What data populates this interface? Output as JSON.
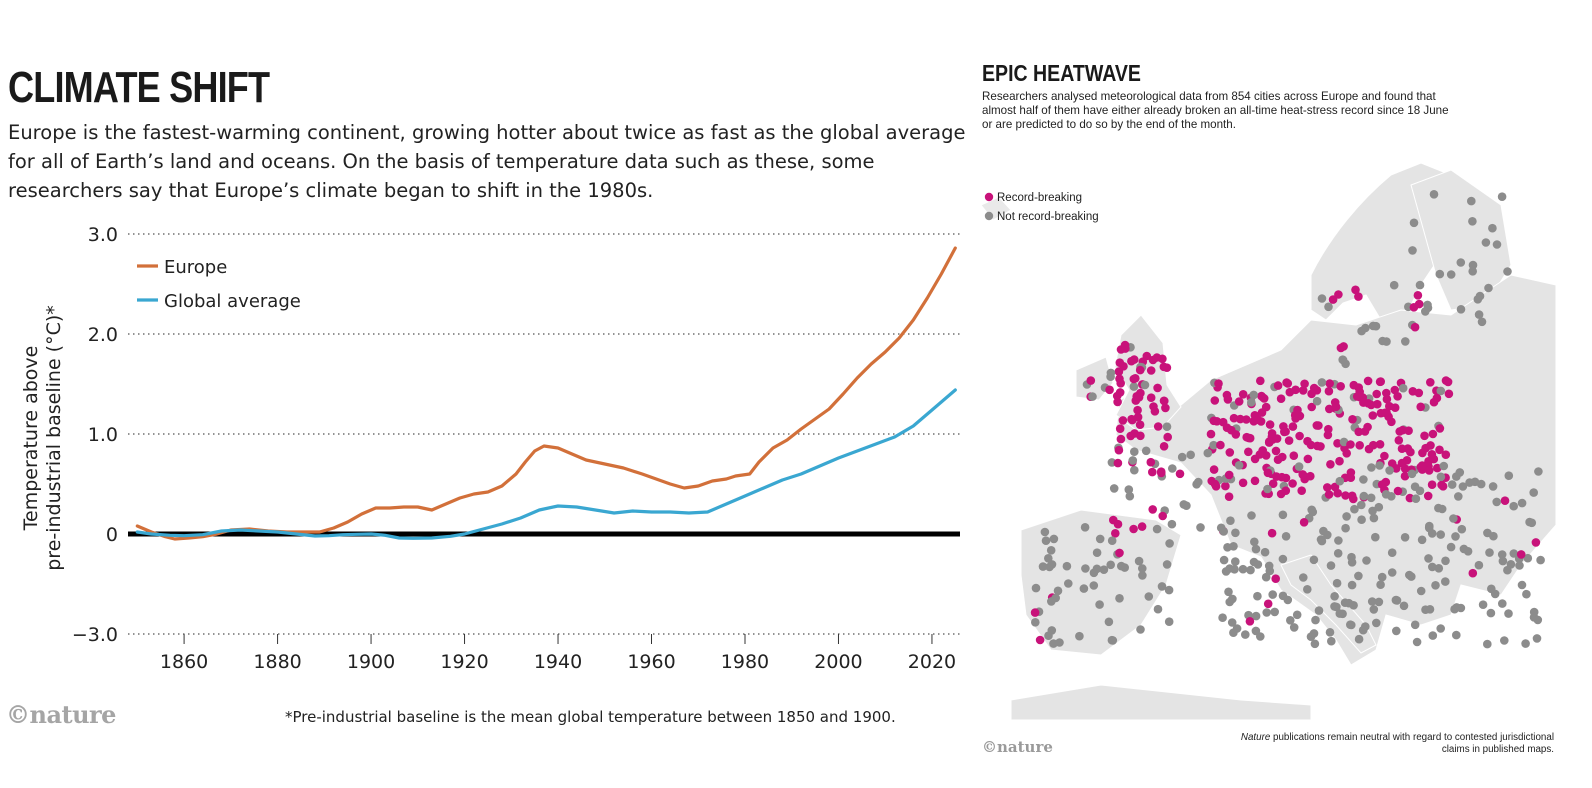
{
  "left": {
    "title": "CLIMATE SHIFT",
    "subtitle": "Europe is the fastest-warming continent, growing hotter about twice as fast as the global average for all of Earth’s land and oceans. On the basis of temperature data such as these, some researchers say that Europe’s climate began to shift in the 1980s.",
    "logo": "©nature",
    "footnote": "*Pre-industrial baseline is the mean global temperature between 1850 and 1900."
  },
  "right": {
    "title": "EPIC HEATWAVE",
    "subtitle": "Researchers analysed meteorological data from 854 cities across Europe and found that almost half of them have either already broken an all-time heat-stress record since 18 June or are predicted to do so by the end of the month.",
    "legend": [
      {
        "label": "Record-breaking",
        "color": "#c8127a"
      },
      {
        "label": "Not record-breaking",
        "color": "#8c8c8c"
      }
    ],
    "logo": "©nature",
    "disclaimer_italic": "Nature",
    "disclaimer_rest": " publications remain neutral with regard to contested jurisdictional claims in published maps."
  },
  "chart_data": {
    "type": "line",
    "ylabel_line1": "Temperature above",
    "ylabel_line2": "pre-industrial baseline (°C)*",
    "xlim": [
      1848,
      2026
    ],
    "ylim": [
      -3.0,
      3.0
    ],
    "y_axis_break": "the segment between −3.0 and 0 is compressed",
    "yticks": [
      {
        "value": 3.0,
        "label": "3.0"
      },
      {
        "value": 2.0,
        "label": "2.0"
      },
      {
        "value": 1.0,
        "label": "1.0"
      },
      {
        "value": 0,
        "label": "0"
      },
      {
        "value": -3.0,
        "label": "−3.0"
      }
    ],
    "xticks": [
      1860,
      1880,
      1900,
      1920,
      1940,
      1960,
      1980,
      2000,
      2020
    ],
    "grid": "dotted horizontal at labelled y ticks",
    "zero_line": true,
    "legend_position": "top-left",
    "series": [
      {
        "name": "Europe",
        "color": "#d2703a",
        "points": [
          [
            1850,
            0.08
          ],
          [
            1853,
            0.02
          ],
          [
            1856,
            -0.08
          ],
          [
            1858,
            -0.15
          ],
          [
            1861,
            -0.12
          ],
          [
            1864,
            -0.08
          ],
          [
            1867,
            0.0
          ],
          [
            1870,
            0.04
          ],
          [
            1874,
            0.05
          ],
          [
            1878,
            0.03
          ],
          [
            1882,
            0.02
          ],
          [
            1886,
            0.02
          ],
          [
            1889,
            0.02
          ],
          [
            1892,
            0.06
          ],
          [
            1895,
            0.12
          ],
          [
            1898,
            0.2
          ],
          [
            1901,
            0.26
          ],
          [
            1904,
            0.26
          ],
          [
            1907,
            0.27
          ],
          [
            1910,
            0.27
          ],
          [
            1913,
            0.24
          ],
          [
            1916,
            0.3
          ],
          [
            1919,
            0.36
          ],
          [
            1922,
            0.4
          ],
          [
            1925,
            0.42
          ],
          [
            1928,
            0.48
          ],
          [
            1931,
            0.6
          ],
          [
            1933,
            0.72
          ],
          [
            1935,
            0.83
          ],
          [
            1937,
            0.88
          ],
          [
            1940,
            0.86
          ],
          [
            1943,
            0.8
          ],
          [
            1946,
            0.74
          ],
          [
            1950,
            0.7
          ],
          [
            1954,
            0.66
          ],
          [
            1958,
            0.6
          ],
          [
            1961,
            0.55
          ],
          [
            1964,
            0.5
          ],
          [
            1967,
            0.46
          ],
          [
            1970,
            0.48
          ],
          [
            1973,
            0.53
          ],
          [
            1976,
            0.55
          ],
          [
            1978,
            0.58
          ],
          [
            1981,
            0.6
          ],
          [
            1983,
            0.72
          ],
          [
            1986,
            0.86
          ],
          [
            1989,
            0.94
          ],
          [
            1992,
            1.05
          ],
          [
            1995,
            1.15
          ],
          [
            1998,
            1.25
          ],
          [
            2001,
            1.4
          ],
          [
            2004,
            1.56
          ],
          [
            2007,
            1.7
          ],
          [
            2010,
            1.82
          ],
          [
            2013,
            1.96
          ],
          [
            2016,
            2.14
          ],
          [
            2019,
            2.36
          ],
          [
            2022,
            2.6
          ],
          [
            2025,
            2.86
          ]
        ]
      },
      {
        "name": "Global average",
        "color": "#3aa7d1",
        "points": [
          [
            1850,
            0.02
          ],
          [
            1853,
            0.0
          ],
          [
            1857,
            -0.04
          ],
          [
            1860,
            -0.05
          ],
          [
            1864,
            -0.02
          ],
          [
            1868,
            0.03
          ],
          [
            1872,
            0.04
          ],
          [
            1876,
            0.03
          ],
          [
            1880,
            0.02
          ],
          [
            1884,
            0.0
          ],
          [
            1888,
            -0.06
          ],
          [
            1891,
            -0.05
          ],
          [
            1894,
            -0.02
          ],
          [
            1897,
            -0.01
          ],
          [
            1900,
            0.0
          ],
          [
            1903,
            -0.04
          ],
          [
            1906,
            -0.12
          ],
          [
            1909,
            -0.13
          ],
          [
            1913,
            -0.12
          ],
          [
            1917,
            -0.07
          ],
          [
            1920,
            0.0
          ],
          [
            1924,
            0.05
          ],
          [
            1928,
            0.1
          ],
          [
            1932,
            0.16
          ],
          [
            1936,
            0.24
          ],
          [
            1940,
            0.28
          ],
          [
            1944,
            0.27
          ],
          [
            1948,
            0.24
          ],
          [
            1952,
            0.21
          ],
          [
            1956,
            0.23
          ],
          [
            1960,
            0.22
          ],
          [
            1964,
            0.22
          ],
          [
            1968,
            0.21
          ],
          [
            1972,
            0.22
          ],
          [
            1976,
            0.3
          ],
          [
            1980,
            0.38
          ],
          [
            1984,
            0.46
          ],
          [
            1988,
            0.54
          ],
          [
            1992,
            0.6
          ],
          [
            1996,
            0.68
          ],
          [
            2000,
            0.76
          ],
          [
            2004,
            0.83
          ],
          [
            2008,
            0.9
          ],
          [
            2012,
            0.97
          ],
          [
            2016,
            1.08
          ],
          [
            2020,
            1.24
          ],
          [
            2025,
            1.44
          ]
        ]
      }
    ]
  }
}
